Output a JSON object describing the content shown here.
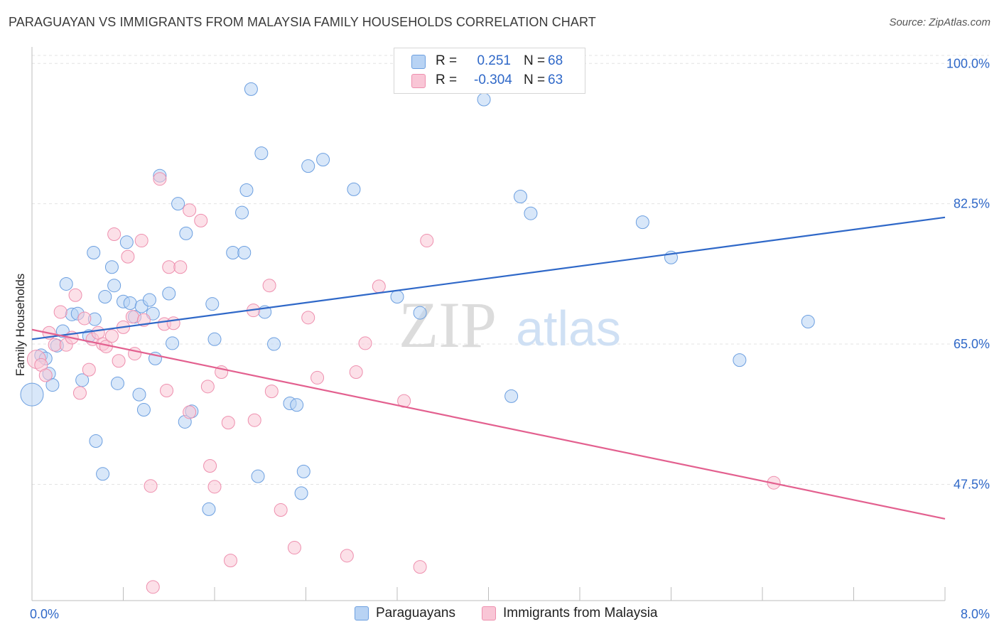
{
  "title": "PARAGUAYAN VS IMMIGRANTS FROM MALAYSIA FAMILY HOUSEHOLDS CORRELATION CHART",
  "source": "Source: ZipAtlas.com",
  "watermark": {
    "zip": "ZIP",
    "atlas": "atlas"
  },
  "colors": {
    "blue_fill": "#b8d3f4",
    "blue_stroke": "#6c9fe0",
    "blue_line": "#2f68c8",
    "pink_fill": "#f9c6d6",
    "pink_stroke": "#ee8fae",
    "pink_line": "#e3608f",
    "axis_text": "#2f68c8",
    "grid": "#e3e3e3"
  },
  "legend": {
    "r_label": "R =",
    "n_label": "N =",
    "rows": [
      {
        "r": "0.251",
        "n": "68"
      },
      {
        "r": "-0.304",
        "n": "63"
      }
    ]
  },
  "chart_data": {
    "type": "scatter",
    "title": "PARAGUAYAN VS IMMIGRANTS FROM MALAYSIA FAMILY HOUSEHOLDS CORRELATION CHART",
    "xlabel": "",
    "ylabel": "Family Households",
    "xlim": [
      0,
      8
    ],
    "ylim": [
      33,
      101
    ],
    "x_tick_labels": [
      "0.0%",
      "8.0%"
    ],
    "y_ticks": [
      47.5,
      65.0,
      82.5,
      100.0
    ],
    "y_tick_labels": [
      "47.5%",
      "65.0%",
      "82.5%",
      "100.0%"
    ],
    "grid": "horizontal dashed",
    "legend_position": "top-center and bottom",
    "series": [
      {
        "name": "Paraguayans",
        "color": "#b8d3f4",
        "trend": {
          "x": [
            0,
            8
          ],
          "y": [
            65.6,
            80.8
          ]
        },
        "points": [
          [
            0.0,
            58.7,
            16
          ],
          [
            0.08,
            63.6,
            9
          ],
          [
            0.12,
            63.2,
            9
          ],
          [
            0.15,
            61.3,
            9
          ],
          [
            0.18,
            59.9,
            9
          ],
          [
            0.22,
            64.8,
            9
          ],
          [
            0.27,
            66.6,
            9
          ],
          [
            0.3,
            72.5,
            9
          ],
          [
            0.35,
            68.7,
            9
          ],
          [
            0.4,
            68.8,
            9
          ],
          [
            0.44,
            60.5,
            9
          ],
          [
            0.5,
            66.0,
            9
          ],
          [
            0.55,
            68.1,
            9
          ],
          [
            0.54,
            76.4,
            9
          ],
          [
            0.56,
            52.9,
            9
          ],
          [
            0.62,
            48.8,
            9
          ],
          [
            0.64,
            70.9,
            9
          ],
          [
            0.7,
            74.6,
            9
          ],
          [
            0.72,
            72.3,
            9
          ],
          [
            0.75,
            60.1,
            9
          ],
          [
            0.8,
            70.3,
            9
          ],
          [
            0.83,
            77.7,
            9
          ],
          [
            0.86,
            70.1,
            9
          ],
          [
            0.9,
            68.4,
            9
          ],
          [
            0.94,
            58.7,
            9
          ],
          [
            0.96,
            69.7,
            9
          ],
          [
            0.98,
            56.8,
            9
          ],
          [
            1.03,
            70.5,
            9
          ],
          [
            1.06,
            68.8,
            9
          ],
          [
            1.08,
            63.2,
            9
          ],
          [
            1.12,
            86.0,
            9
          ],
          [
            1.2,
            71.3,
            9
          ],
          [
            1.23,
            65.1,
            9
          ],
          [
            1.28,
            82.5,
            9
          ],
          [
            1.34,
            55.3,
            9
          ],
          [
            1.35,
            78.8,
            9
          ],
          [
            1.4,
            56.6,
            9
          ],
          [
            1.55,
            44.4,
            9
          ],
          [
            1.58,
            70.0,
            9
          ],
          [
            1.6,
            65.6,
            9
          ],
          [
            1.76,
            76.4,
            9
          ],
          [
            1.84,
            81.4,
            9
          ],
          [
            1.86,
            76.4,
            9
          ],
          [
            1.88,
            84.2,
            9
          ],
          [
            1.92,
            96.8,
            9
          ],
          [
            1.98,
            48.5,
            9
          ],
          [
            2.01,
            88.8,
            9
          ],
          [
            2.04,
            69.0,
            9
          ],
          [
            2.12,
            65.0,
            9
          ],
          [
            2.26,
            57.6,
            9
          ],
          [
            2.32,
            57.4,
            9
          ],
          [
            2.36,
            46.4,
            9
          ],
          [
            2.38,
            49.1,
            9
          ],
          [
            2.42,
            87.2,
            9
          ],
          [
            2.55,
            88.0,
            9
          ],
          [
            2.82,
            84.3,
            9
          ],
          [
            3.2,
            70.9,
            9
          ],
          [
            3.4,
            68.9,
            9
          ],
          [
            3.96,
            95.5,
            9
          ],
          [
            4.2,
            58.5,
            9
          ],
          [
            4.28,
            83.4,
            9
          ],
          [
            4.37,
            81.3,
            9
          ],
          [
            5.35,
            80.2,
            9
          ],
          [
            5.6,
            75.8,
            9
          ],
          [
            6.8,
            67.8,
            9
          ],
          [
            6.2,
            63.0,
            9
          ]
        ]
      },
      {
        "name": "Immigrants from Malaysia",
        "color": "#f9c6d6",
        "trend": {
          "x": [
            0,
            8
          ],
          "y": [
            66.8,
            43.2
          ]
        },
        "points": [
          [
            0.04,
            63.1,
            13
          ],
          [
            0.08,
            62.4,
            9
          ],
          [
            0.12,
            61.1,
            9
          ],
          [
            0.15,
            66.4,
            9
          ],
          [
            0.2,
            64.9,
            9
          ],
          [
            0.25,
            69.0,
            9
          ],
          [
            0.3,
            64.9,
            9
          ],
          [
            0.35,
            65.8,
            9
          ],
          [
            0.38,
            71.1,
            9
          ],
          [
            0.42,
            58.9,
            9
          ],
          [
            0.46,
            68.2,
            9
          ],
          [
            0.5,
            61.8,
            9
          ],
          [
            0.53,
            65.6,
            9
          ],
          [
            0.58,
            66.4,
            9
          ],
          [
            0.62,
            65.0,
            9
          ],
          [
            0.65,
            64.7,
            9
          ],
          [
            0.7,
            66.0,
            9
          ],
          [
            0.72,
            78.7,
            9
          ],
          [
            0.76,
            62.9,
            9
          ],
          [
            0.8,
            67.1,
            9
          ],
          [
            0.84,
            75.9,
            9
          ],
          [
            0.88,
            68.4,
            9
          ],
          [
            0.9,
            63.8,
            9
          ],
          [
            0.96,
            77.9,
            9
          ],
          [
            0.98,
            68.0,
            9
          ],
          [
            1.04,
            47.3,
            9
          ],
          [
            1.06,
            34.7,
            9
          ],
          [
            1.12,
            85.6,
            9
          ],
          [
            1.16,
            67.5,
            9
          ],
          [
            1.18,
            59.2,
            9
          ],
          [
            1.2,
            74.6,
            9
          ],
          [
            1.24,
            67.6,
            9
          ],
          [
            1.3,
            74.6,
            9
          ],
          [
            1.38,
            81.7,
            9
          ],
          [
            1.38,
            56.5,
            9
          ],
          [
            1.48,
            80.4,
            9
          ],
          [
            1.54,
            59.7,
            9
          ],
          [
            1.56,
            49.8,
            9
          ],
          [
            1.6,
            47.2,
            9
          ],
          [
            1.66,
            61.5,
            9
          ],
          [
            1.72,
            55.2,
            9
          ],
          [
            1.74,
            38.0,
            9
          ],
          [
            1.94,
            69.2,
            9
          ],
          [
            1.95,
            55.5,
            9
          ],
          [
            2.08,
            72.3,
            9
          ],
          [
            2.1,
            59.1,
            9
          ],
          [
            2.18,
            44.3,
            9
          ],
          [
            2.3,
            39.6,
            9
          ],
          [
            2.42,
            68.3,
            9
          ],
          [
            2.5,
            60.8,
            9
          ],
          [
            2.76,
            38.6,
            9
          ],
          [
            2.84,
            61.5,
            9
          ],
          [
            2.92,
            65.1,
            9
          ],
          [
            3.04,
            72.2,
            9
          ],
          [
            3.26,
            57.9,
            9
          ],
          [
            3.4,
            37.2,
            9
          ],
          [
            3.46,
            77.9,
            9
          ],
          [
            6.5,
            47.7,
            9
          ]
        ]
      }
    ]
  }
}
